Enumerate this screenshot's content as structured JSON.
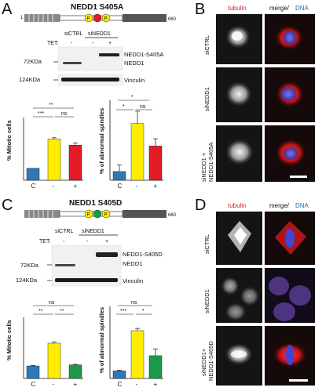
{
  "colors": {
    "blue": "#2f78b8",
    "yellow": "#ffec00",
    "red": "#e31b23",
    "green": "#1a9a4a",
    "tubulin_label": "#d21f26",
    "dna_label": "#1f6fb5",
    "cell_bg": "#111111"
  },
  "icons": [
    "domain-schematic-A",
    "domain-schematic-C",
    "phospho-p-icon",
    "western-blot-bands",
    "microscopy-cell"
  ],
  "panels": {
    "A": {
      "letter": "A",
      "title": "NEDD1 S405A",
      "aa_start": "1",
      "aa_end": "660",
      "domain_labels": [
        "P",
        "",
        "P"
      ],
      "site_color_name": "red",
      "blot": {
        "lanes": [
          "siCTRL",
          "siNEDD1"
        ],
        "tet_label": "TET:",
        "tet_values": [
          "-",
          "-",
          "+"
        ],
        "mw_top": "72KDa",
        "mw_bottom": "124KDa",
        "band_top_label": "NEDD1-S405A",
        "band_mid_label": "NEDD1",
        "band_bottom_label": "Vinculin"
      },
      "bars_left": {
        "ylabel": "% Mitotic cells",
        "x_ticks": [
          "C",
          "-",
          "+"
        ],
        "sig": [
          "**",
          "***",
          "ns"
        ]
      },
      "bars_right": {
        "ylabel": "% of abnormal spindles",
        "x_ticks": [
          "C",
          "-",
          "+"
        ],
        "sig": [
          "*",
          "*",
          "ns"
        ]
      },
      "micro": {
        "letter": "B",
        "col1": "tubulin",
        "col2_merge": "merge/",
        "col2_dna": "DNA",
        "rows": [
          "siCTRL",
          "siNEDD1",
          "siNEDD1 +",
          "NEDD1-S405A"
        ]
      }
    },
    "C": {
      "letter": "C",
      "title": "NEDD1 S405D",
      "aa_end": "660",
      "domain_labels": [
        "P",
        "",
        "P"
      ],
      "site_color_name": "green",
      "blot": {
        "lanes": [
          "siCTRL",
          "siNEDD1"
        ],
        "tet_label": "TET:",
        "tet_values": [
          "-",
          "-",
          "+"
        ],
        "mw_top": "72KDa",
        "mw_bottom": "124KDa",
        "band_top_label": "NEDD1-S405D",
        "band_mid_label": "NEDD1",
        "band_bottom_label": "Vinculin"
      },
      "bars_left": {
        "ylabel": "% Mitotic cells",
        "x_ticks": [
          "C",
          "-",
          "+"
        ],
        "sig": [
          "ns",
          "**",
          "**"
        ]
      },
      "bars_right": {
        "ylabel": "% of abnormal spindles",
        "x_ticks": [
          "C",
          "-",
          "+"
        ],
        "sig": [
          "ns",
          "***",
          "*"
        ]
      },
      "micro": {
        "letter": "D",
        "col1": "tubulin",
        "col2_merge": "merge/",
        "col2_dna": "DNA",
        "rows": [
          "siCTRL",
          "siNEDD1",
          "siNEDD1+",
          "NEDD1-S405D"
        ]
      }
    }
  },
  "chart_data": [
    {
      "type": "bar",
      "panel": "A",
      "ylabel": "% Mitotic cells",
      "categories": [
        "C",
        "-",
        "+"
      ],
      "values": [
        4.2,
        14.5,
        12.3
      ],
      "errors": [
        0,
        0.4,
        0.8
      ],
      "ylim": [
        0,
        22
      ],
      "colors": [
        "blue",
        "yellow",
        "red"
      ]
    },
    {
      "type": "bar",
      "panel": "A",
      "ylabel": "% of abnormal spindles",
      "categories": [
        "C",
        "-",
        "+"
      ],
      "values": [
        12,
        78,
        47
      ],
      "errors": [
        9,
        17,
        10
      ],
      "ylim": [
        0,
        110
      ],
      "colors": [
        "blue",
        "yellow",
        "red"
      ]
    },
    {
      "type": "bar",
      "panel": "C",
      "ylabel": "% Mitotic cells",
      "categories": [
        "C",
        "-",
        "+"
      ],
      "values": [
        4.5,
        12.7,
        4.9
      ],
      "errors": [
        0.2,
        0.4,
        0.2
      ],
      "ylim": [
        0,
        22
      ],
      "colors": [
        "blue",
        "yellow",
        "green"
      ]
    },
    {
      "type": "bar",
      "panel": "C",
      "ylabel": "% of abnormal spindles",
      "categories": [
        "C",
        "-",
        "+"
      ],
      "values": [
        10,
        63,
        30
      ],
      "errors": [
        1,
        3,
        9
      ],
      "ylim": [
        0,
        95
      ],
      "colors": [
        "blue",
        "yellow",
        "green"
      ]
    }
  ]
}
